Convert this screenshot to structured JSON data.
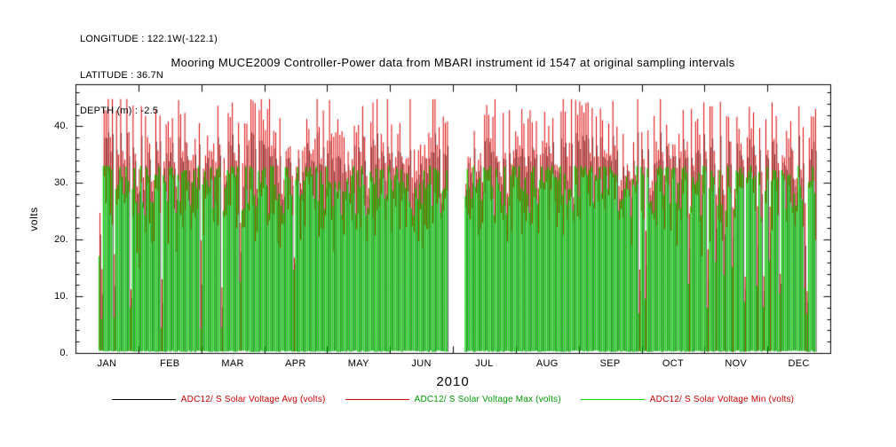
{
  "header": {
    "longitude": "LONGITUDE : 122.1W(-122.1)",
    "latitude": "LATITUDE : 36.7N",
    "depth": "DEPTH (m) : -2.5"
  },
  "chart_data": {
    "type": "line",
    "title": "Mooring MUCE2009 Controller-Power data from MBARI instrument id 1547 at original sampling intervals",
    "xlabel": "2010",
    "ylabel": "volts",
    "x_tick_labels": [
      "JAN",
      "FEB",
      "MAR",
      "APR",
      "MAY",
      "JUN",
      "JUL",
      "AUG",
      "SEP",
      "OCT",
      "NOV",
      "DEC"
    ],
    "y_tick_labels": [
      "0.",
      "10.",
      "20.",
      "30.",
      "40."
    ],
    "y_tick_values": [
      0,
      10,
      20,
      30,
      40
    ],
    "ylim": [
      0,
      47.4
    ],
    "x_range_days": 365,
    "grid": false,
    "legend_position": "bottom",
    "series": [
      {
        "name": "ADC12/ S Solar Voltage Avg (volts)",
        "color": "#000000",
        "label_color": "#cc0000",
        "role": "avg",
        "typical_day_range": [
          0.3,
          38
        ]
      },
      {
        "name": "ADC12/ S Solar Voltage Max (volts)",
        "color": "#dd0000",
        "label_color": "#009900",
        "role": "max",
        "typical_day_range": [
          0.3,
          44.5
        ]
      },
      {
        "name": "ADC12/ S Solar Voltage Min (volts)",
        "color": "#00dd00",
        "label_color": "#cc0000",
        "role": "min",
        "typical_day_range": [
          0.1,
          33
        ]
      }
    ],
    "pattern": {
      "description": "Daily solar charging cycle sampled at original intervals through year 2010: every day the voltage swings from ~0.3 V at night up to a midday plateau; green Min envelope tops out near 24-33 V, red Max envelope reaches 33-44.5 V with spikes to ~44.8 V, black Avg sits near 33-38 V and is mostly hidden behind the Max/Min traces. Occasional low-output (storm/fouling) days drop the whole column to 4-18 V, more often in winter. A data gap (white band) occurs in late June / early July.",
      "data_start_day": 11,
      "data_end_day": 357,
      "gap_days": [
        180,
        187
      ],
      "night_volts": 0.3,
      "green_top_range": [
        24,
        33
      ],
      "red_peak_range": [
        33,
        44.5
      ],
      "storm_day_fraction": 0.08,
      "storm_top_range": [
        4,
        18
      ],
      "seed": 20100
    }
  }
}
